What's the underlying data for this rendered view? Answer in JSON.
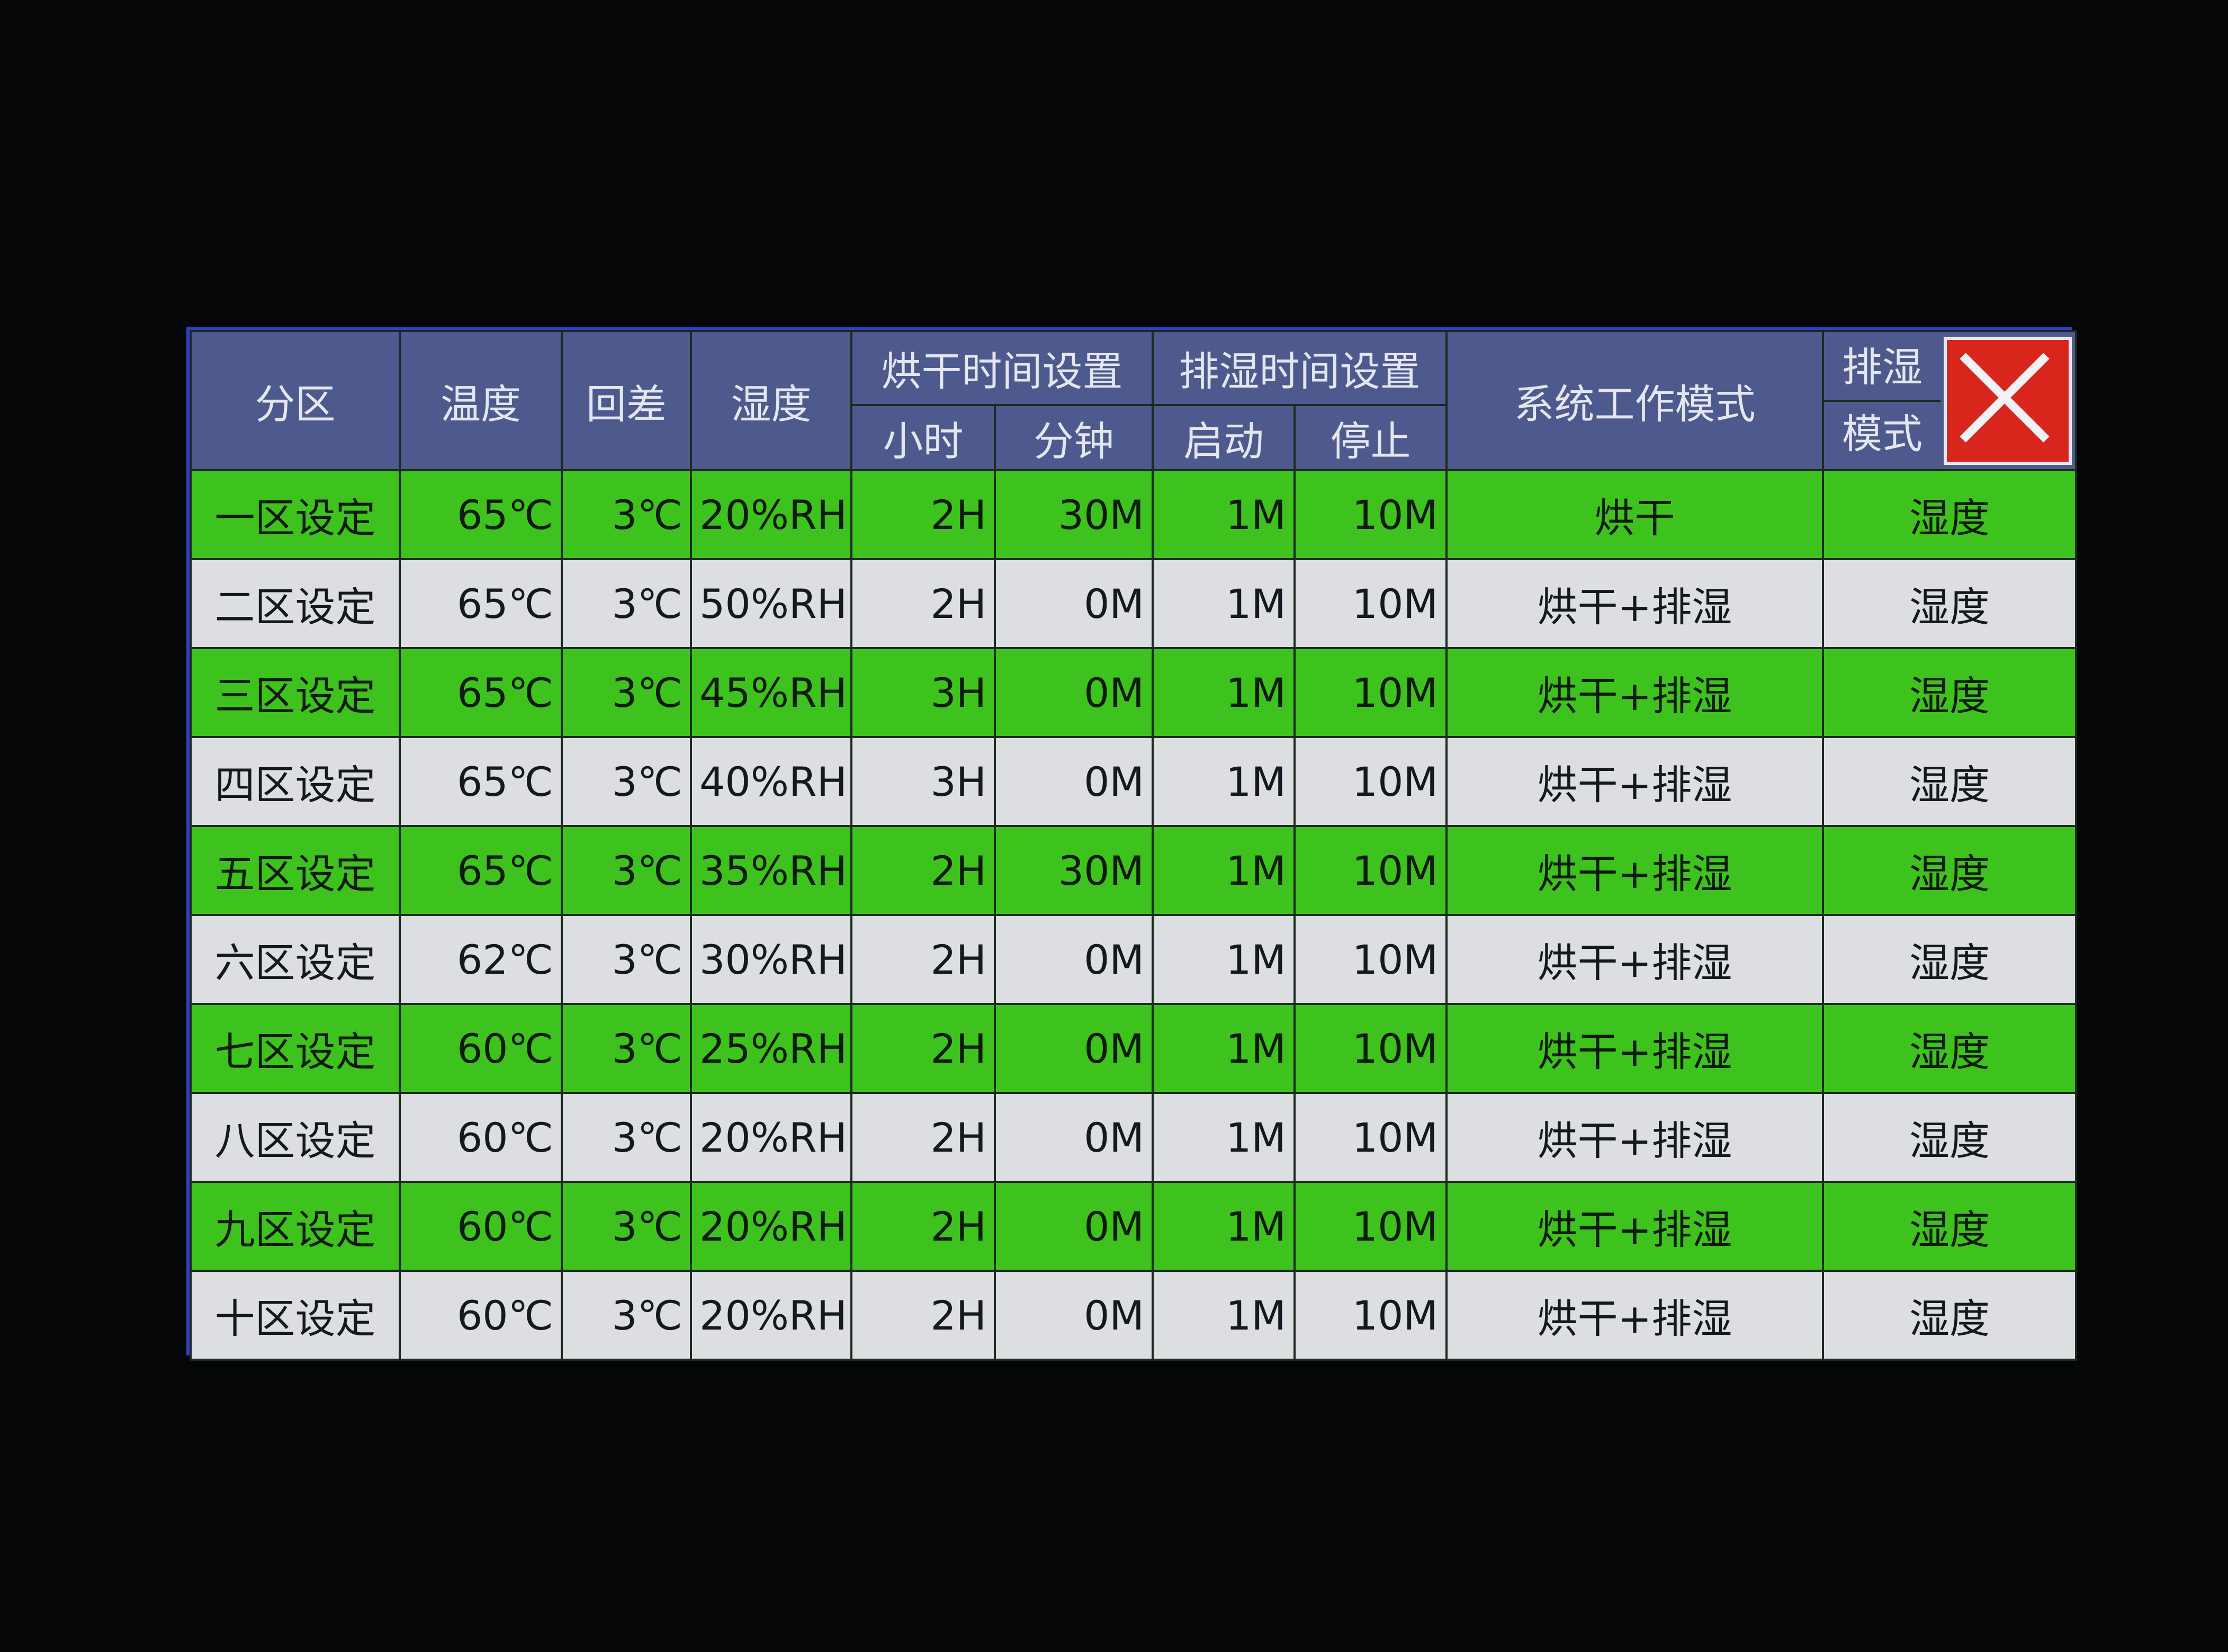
{
  "header": {
    "zone": "分区",
    "temperature": "温度",
    "hysteresis": "回差",
    "humidity": "湿度",
    "dry_time": "烘干时间设置",
    "dehum_time": "排湿时间设置",
    "hour": "小时",
    "minute": "分钟",
    "start": "启动",
    "stop": "停止",
    "system_mode": "系统工作模式",
    "dehum_mode_1": "排湿",
    "dehum_mode_2": "模式"
  },
  "close_icon": "close-x-icon",
  "colors": {
    "header": "#4e5a8e",
    "green_row": "#3ec21e",
    "white_row": "#dcdee2",
    "close": "#d8261c"
  },
  "rows": [
    {
      "zone": "一区设定",
      "temp": "65℃",
      "hyst": "3℃",
      "hum": "20%RH",
      "hour": "2H",
      "min": "30M",
      "start": "1M",
      "stop": "10M",
      "mode": "烘干",
      "dmode": "湿度"
    },
    {
      "zone": "二区设定",
      "temp": "65℃",
      "hyst": "3℃",
      "hum": "50%RH",
      "hour": "2H",
      "min": "0M",
      "start": "1M",
      "stop": "10M",
      "mode": "烘干+排湿",
      "dmode": "湿度"
    },
    {
      "zone": "三区设定",
      "temp": "65℃",
      "hyst": "3℃",
      "hum": "45%RH",
      "hour": "3H",
      "min": "0M",
      "start": "1M",
      "stop": "10M",
      "mode": "烘干+排湿",
      "dmode": "湿度"
    },
    {
      "zone": "四区设定",
      "temp": "65℃",
      "hyst": "3℃",
      "hum": "40%RH",
      "hour": "3H",
      "min": "0M",
      "start": "1M",
      "stop": "10M",
      "mode": "烘干+排湿",
      "dmode": "湿度"
    },
    {
      "zone": "五区设定",
      "temp": "65℃",
      "hyst": "3℃",
      "hum": "35%RH",
      "hour": "2H",
      "min": "30M",
      "start": "1M",
      "stop": "10M",
      "mode": "烘干+排湿",
      "dmode": "湿度"
    },
    {
      "zone": "六区设定",
      "temp": "62℃",
      "hyst": "3℃",
      "hum": "30%RH",
      "hour": "2H",
      "min": "0M",
      "start": "1M",
      "stop": "10M",
      "mode": "烘干+排湿",
      "dmode": "湿度"
    },
    {
      "zone": "七区设定",
      "temp": "60℃",
      "hyst": "3℃",
      "hum": "25%RH",
      "hour": "2H",
      "min": "0M",
      "start": "1M",
      "stop": "10M",
      "mode": "烘干+排湿",
      "dmode": "湿度"
    },
    {
      "zone": "八区设定",
      "temp": "60℃",
      "hyst": "3℃",
      "hum": "20%RH",
      "hour": "2H",
      "min": "0M",
      "start": "1M",
      "stop": "10M",
      "mode": "烘干+排湿",
      "dmode": "湿度"
    },
    {
      "zone": "九区设定",
      "temp": "60℃",
      "hyst": "3℃",
      "hum": "20%RH",
      "hour": "2H",
      "min": "0M",
      "start": "1M",
      "stop": "10M",
      "mode": "烘干+排湿",
      "dmode": "湿度"
    },
    {
      "zone": "十区设定",
      "temp": "60℃",
      "hyst": "3℃",
      "hum": "20%RH",
      "hour": "2H",
      "min": "0M",
      "start": "1M",
      "stop": "10M",
      "mode": "烘干+排湿",
      "dmode": "湿度"
    }
  ]
}
